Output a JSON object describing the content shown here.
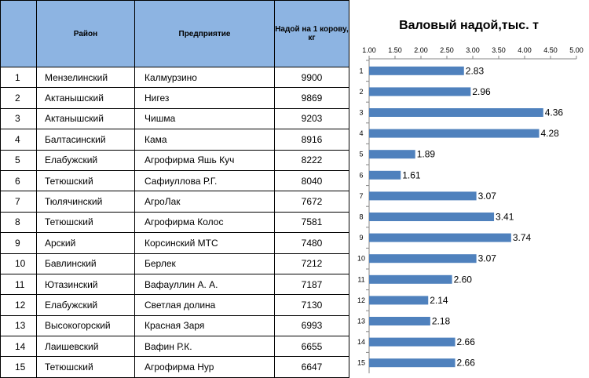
{
  "table": {
    "headers": {
      "num": "",
      "region": "Район",
      "enterprise": "Предприятие",
      "yield": "Надой на 1 корову, кг"
    },
    "rows": [
      {
        "num": "1",
        "region": "Мензелинский",
        "enterprise": "Калмурзино",
        "yield": "9900"
      },
      {
        "num": "2",
        "region": "Актанышский",
        "enterprise": "Нигез",
        "yield": "9869"
      },
      {
        "num": "3",
        "region": "Актанышский",
        "enterprise": "Чишма",
        "yield": "9203"
      },
      {
        "num": "4",
        "region": "Балтасинский",
        "enterprise": "Кама",
        "yield": "8916"
      },
      {
        "num": "5",
        "region": "Елабужский",
        "enterprise": "Агрофирма Яшь Куч",
        "yield": "8222"
      },
      {
        "num": "6",
        "region": "Тетюшский",
        "enterprise": "Сафиуллова Р.Г.",
        "yield": "8040"
      },
      {
        "num": "7",
        "region": "Тюлячинский",
        "enterprise": "АгроЛак",
        "yield": "7672"
      },
      {
        "num": "8",
        "region": "Тетюшский",
        "enterprise": "Агрофирма Колос",
        "yield": "7581"
      },
      {
        "num": "9",
        "region": "Арский",
        "enterprise": "Корсинский МТС",
        "yield": "7480"
      },
      {
        "num": "10",
        "region": "Бавлинский",
        "enterprise": "Берлек",
        "yield": "7212"
      },
      {
        "num": "11",
        "region": "Ютазинский",
        "enterprise": "Вафауллин А. А.",
        "yield": "7187"
      },
      {
        "num": "12",
        "region": "Елабужский",
        "enterprise": "Светлая долина",
        "yield": "7130"
      },
      {
        "num": "13",
        "region": "Высокогорский",
        "enterprise": "Красная Заря",
        "yield": "6993"
      },
      {
        "num": "14",
        "region": "Лаишевский",
        "enterprise": "Вафин Р.К.",
        "yield": "6655"
      },
      {
        "num": "15",
        "region": "Тетюшский",
        "enterprise": "Агрофирма Нур",
        "yield": "6647"
      }
    ]
  },
  "chart_data": {
    "type": "bar",
    "orientation": "horizontal",
    "title": "Валовый надой,тыс. т",
    "categories": [
      "1",
      "2",
      "3",
      "4",
      "5",
      "6",
      "7",
      "8",
      "9",
      "10",
      "11",
      "12",
      "13",
      "14",
      "15"
    ],
    "values": [
      2.83,
      2.96,
      4.36,
      4.28,
      1.89,
      1.61,
      3.07,
      3.41,
      3.74,
      3.07,
      2.6,
      2.14,
      2.18,
      2.66,
      2.66
    ],
    "value_labels": [
      "2.83",
      "2.96",
      "4.36",
      "4.28",
      "1.89",
      "1.61",
      "3.07",
      "3.41",
      "3.74",
      "3.07",
      "2.60",
      "2.14",
      "2.18",
      "2.66",
      "2.66"
    ],
    "xlim": [
      1.0,
      5.0
    ],
    "xticks": [
      "1.00",
      "1.50",
      "2.00",
      "2.50",
      "3.00",
      "3.50",
      "4.00",
      "4.50",
      "5.00"
    ],
    "xaxis_position": "top",
    "grid": false,
    "legend": "none",
    "bar_color": "#4f81bd"
  }
}
